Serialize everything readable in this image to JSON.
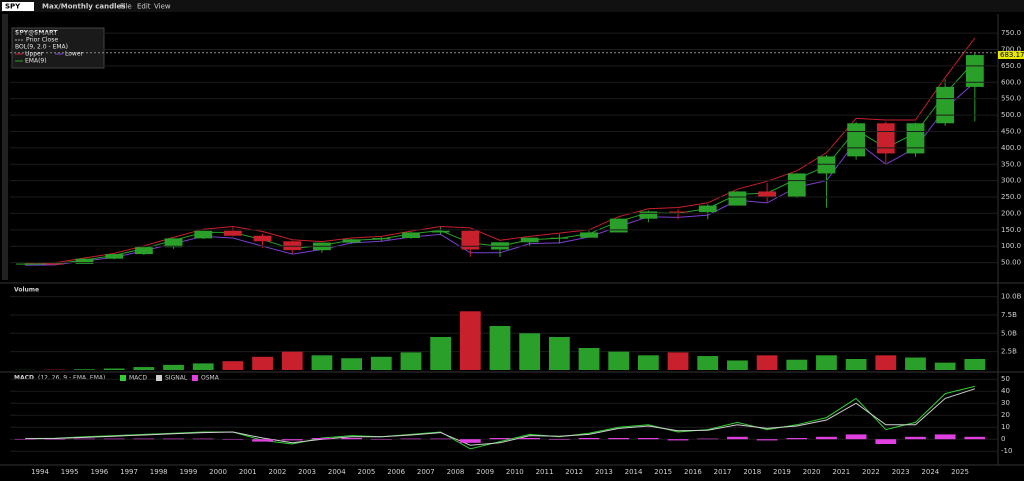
{
  "ui": {
    "symbol": "SPY",
    "period": "Max/Monthly candles",
    "menu": [
      "File",
      "Edit",
      "View"
    ]
  },
  "chart_data": [
    {
      "type": "candlestick",
      "legend_title": "SPY@SMART",
      "band_title": "BOL(9, 2.0 - EMA)",
      "categories": [
        null,
        "1994",
        "1995",
        "1996",
        "1997",
        "1998",
        "1999",
        "2000",
        "2001",
        "2002",
        "2003",
        "2004",
        "2005",
        "2006",
        "2007",
        "2008",
        "2009",
        "2010",
        "2011",
        "2012",
        "2013",
        "2014",
        "2015",
        "2016",
        "2017",
        "2018",
        "2019",
        "2020",
        "2021",
        "2022",
        "2023",
        "2024",
        "2025"
      ],
      "open": [
        44,
        47,
        46,
        62,
        76,
        97,
        124,
        147,
        132,
        115,
        88,
        111,
        121,
        125,
        142,
        147,
        90,
        112,
        126,
        126,
        142,
        184,
        206,
        204,
        224,
        267,
        250,
        322,
        374,
        475,
        383,
        475,
        586
      ],
      "high": [
        48,
        48,
        62,
        76,
        99,
        124,
        147,
        157,
        138,
        117,
        111,
        122,
        128,
        143,
        158,
        150,
        112,
        126,
        137,
        147,
        185,
        209,
        213,
        228,
        268,
        293,
        323,
        378,
        479,
        480,
        477,
        609,
        690
      ],
      "low": [
        43,
        43,
        46,
        60,
        73,
        92,
        122,
        130,
        94,
        77,
        80,
        107,
        114,
        123,
        136,
        68,
        67,
        101,
        108,
        126,
        142,
        173,
        182,
        182,
        224,
        234,
        247,
        218,
        364,
        348,
        373,
        467,
        481
      ],
      "close": [
        47,
        46,
        62,
        76,
        97,
        124,
        147,
        132,
        115,
        88,
        111,
        121,
        125,
        142,
        147,
        90,
        112,
        126,
        126,
        142,
        184,
        206,
        204,
        224,
        267,
        250,
        322,
        374,
        475,
        383,
        475,
        586,
        683
      ],
      "series": [
        {
          "name": "Upper",
          "color": "#c8202c",
          "values": [
            48,
            49,
            64,
            78,
            101,
            127,
            152,
            160,
            145,
            120,
            114,
            125,
            130,
            146,
            160,
            156,
            118,
            130,
            140,
            150,
            190,
            214,
            218,
            232,
            274,
            298,
            330,
            385,
            490,
            485,
            485,
            615,
            735
          ]
        },
        {
          "name": "Lower",
          "color": "#7b3fd0",
          "values": [
            42,
            43,
            55,
            66,
            86,
            108,
            130,
            125,
            100,
            76,
            90,
            110,
            115,
            128,
            136,
            80,
            80,
            108,
            110,
            128,
            160,
            190,
            188,
            195,
            240,
            232,
            280,
            300,
            420,
            350,
            400,
            520,
            600
          ]
        },
        {
          "name": "EMA(9)",
          "color": "#2aa02a",
          "values": [
            45,
            46,
            58,
            72,
            93,
            118,
            142,
            142,
            120,
            92,
            103,
            118,
            122,
            138,
            148,
            110,
            100,
            120,
            124,
            138,
            176,
            202,
            200,
            215,
            258,
            262,
            305,
            345,
            455,
            400,
            445,
            565,
            665
          ]
        }
      ],
      "prior_close": {
        "name": "Prior Close",
        "value": 690
      },
      "last_price": {
        "value": 683.17,
        "label": "683.17"
      },
      "up_color": "#2aa02a",
      "down_color": "#c8202c",
      "ylim": [
        0,
        790
      ],
      "yticks": [
        {
          "value": 50,
          "label": "50.00"
        },
        {
          "value": 100,
          "label": "100.0"
        },
        {
          "value": 150,
          "label": "150.0"
        },
        {
          "value": 200,
          "label": "200.0"
        },
        {
          "value": 250,
          "label": "250.0"
        },
        {
          "value": 300,
          "label": "300.0"
        },
        {
          "value": 350,
          "label": "350.0"
        },
        {
          "value": 400,
          "label": "400.0"
        },
        {
          "value": 450,
          "label": "450.0"
        },
        {
          "value": 500,
          "label": "500.0"
        },
        {
          "value": 550,
          "label": "550.0"
        },
        {
          "value": 600,
          "label": "600.0"
        },
        {
          "value": 650,
          "label": "650.0"
        },
        {
          "value": 700,
          "label": "700.0"
        },
        {
          "value": 750,
          "label": "750.0"
        }
      ],
      "grid": true
    },
    {
      "type": "bar",
      "title": "Volume",
      "values": [
        20000000,
        50000000,
        100000000,
        200000000,
        400000000,
        700000000,
        900000000,
        1200000000,
        1800000000,
        2500000000,
        2000000000,
        1600000000,
        1800000000,
        2400000000,
        4500000000,
        8000000000,
        6000000000,
        5000000000,
        4500000000,
        3000000000,
        2500000000,
        2000000000,
        2400000000,
        1900000000,
        1300000000,
        2000000000,
        1400000000,
        2000000000,
        1500000000,
        2000000000,
        1700000000,
        1000000000,
        1500000000
      ],
      "ylim": [
        0,
        10900000000
      ],
      "yticks": [
        {
          "value": 2500000000,
          "label": "2.5B"
        },
        {
          "value": 5000000000,
          "label": "5.0B"
        },
        {
          "value": 7500000000,
          "label": "7.5B"
        },
        {
          "value": 10000000000,
          "label": "10.0B"
        }
      ],
      "grid": true
    },
    {
      "type": "line",
      "title": "MACD",
      "subtitle": "(12, 26, 9 - EMA, EMA)",
      "series": [
        {
          "name": "MACD",
          "color": "#33cc33",
          "values": [
            0.5,
            0.8,
            2,
            3,
            4,
            5,
            6,
            6,
            -1,
            -4,
            1,
            3,
            2,
            4,
            6,
            -8,
            -2,
            4,
            2,
            5,
            10,
            12,
            6,
            8,
            14,
            8,
            12,
            18,
            34,
            8,
            14,
            38,
            44
          ]
        },
        {
          "name": "SIGNAL",
          "color": "#cfcfcf",
          "values": [
            0.3,
            0.6,
            1.5,
            2.5,
            3.5,
            4.5,
            5.5,
            6,
            1,
            -3,
            0,
            2,
            2,
            3.5,
            5.5,
            -5,
            -3,
            3,
            2.5,
            4,
            9,
            11,
            7,
            7.5,
            12,
            9,
            11,
            16,
            30,
            12,
            12,
            34,
            42
          ]
        },
        {
          "name": "OSMA",
          "color": "#e040e0",
          "kind": "bar",
          "values": [
            0.2,
            0.2,
            0.5,
            0.5,
            0.5,
            0.5,
            0.5,
            0,
            -2,
            -1,
            1,
            1,
            0,
            0.5,
            0.5,
            -3,
            1,
            1,
            -0.5,
            1,
            1,
            1,
            -1,
            0.5,
            2,
            -1,
            1,
            2,
            4,
            -4,
            2,
            4,
            2
          ]
        }
      ],
      "ylim": [
        -19,
        51
      ],
      "yticks": [
        -10,
        0,
        10,
        20,
        30,
        40,
        50
      ],
      "grid": true
    }
  ]
}
